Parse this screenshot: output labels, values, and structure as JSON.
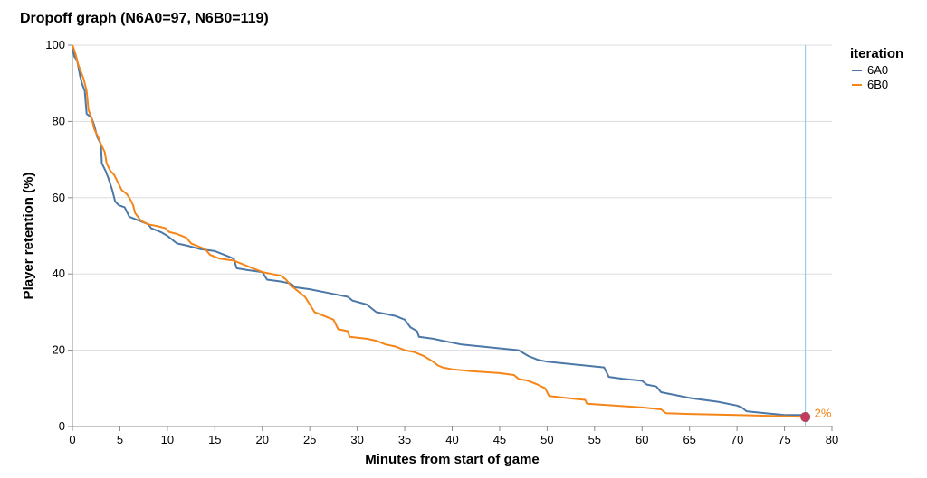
{
  "chart_data": {
    "type": "line",
    "title": "Dropoff graph (N6A0=97, N6B0=119)",
    "xlabel": "Minutes from start of game",
    "ylabel": "Player retention (%)",
    "xlim": [
      0,
      80
    ],
    "ylim": [
      0,
      100
    ],
    "xticks": [
      0,
      5,
      10,
      15,
      20,
      25,
      30,
      35,
      40,
      45,
      50,
      55,
      60,
      65,
      70,
      75,
      80
    ],
    "yticks": [
      0,
      20,
      40,
      60,
      80,
      100
    ],
    "grid": "horizontal",
    "legend": {
      "title": "iteration",
      "position": "top-right"
    },
    "series": [
      {
        "name": "6A0",
        "color": "#4c78a8",
        "points": [
          [
            0,
            100
          ],
          [
            0.2,
            97
          ],
          [
            0.5,
            96
          ],
          [
            0.8,
            92
          ],
          [
            1.0,
            90
          ],
          [
            1.3,
            88
          ],
          [
            1.5,
            82
          ],
          [
            2.0,
            81
          ],
          [
            2.3,
            79
          ],
          [
            2.6,
            76
          ],
          [
            3.0,
            74
          ],
          [
            3.1,
            69
          ],
          [
            3.5,
            67
          ],
          [
            3.8,
            65
          ],
          [
            4.2,
            62
          ],
          [
            4.5,
            59
          ],
          [
            4.9,
            58
          ],
          [
            5.5,
            57.5
          ],
          [
            6.0,
            55
          ],
          [
            7.0,
            54
          ],
          [
            8.0,
            53
          ],
          [
            8.3,
            52
          ],
          [
            9.3,
            51
          ],
          [
            10.0,
            50
          ],
          [
            11.0,
            48
          ],
          [
            12.0,
            47.5
          ],
          [
            13.5,
            46.5
          ],
          [
            15.0,
            46
          ],
          [
            16.0,
            45
          ],
          [
            17.0,
            44
          ],
          [
            17.3,
            41.5
          ],
          [
            18.5,
            41
          ],
          [
            20.0,
            40.5
          ],
          [
            20.5,
            38.5
          ],
          [
            22.0,
            38
          ],
          [
            23.0,
            37.5
          ],
          [
            23.5,
            36.5
          ],
          [
            25.0,
            36
          ],
          [
            27.0,
            35
          ],
          [
            29.0,
            34
          ],
          [
            29.5,
            33
          ],
          [
            31.0,
            32
          ],
          [
            32.0,
            30
          ],
          [
            34.0,
            29
          ],
          [
            35.0,
            28
          ],
          [
            35.6,
            26
          ],
          [
            36.3,
            25
          ],
          [
            36.5,
            23.5
          ],
          [
            38.0,
            23
          ],
          [
            39.0,
            22.5
          ],
          [
            40.0,
            22
          ],
          [
            41.0,
            21.5
          ],
          [
            43.0,
            21
          ],
          [
            45.0,
            20.5
          ],
          [
            47.0,
            20
          ],
          [
            48.0,
            18.5
          ],
          [
            49.0,
            17.5
          ],
          [
            50.0,
            17
          ],
          [
            52.0,
            16.5
          ],
          [
            54.0,
            16
          ],
          [
            56.0,
            15.5
          ],
          [
            56.5,
            13
          ],
          [
            58.0,
            12.5
          ],
          [
            60.0,
            12
          ],
          [
            60.5,
            11
          ],
          [
            61.5,
            10.5
          ],
          [
            62.0,
            9
          ],
          [
            63.0,
            8.5
          ],
          [
            65.0,
            7.5
          ],
          [
            68.0,
            6.5
          ],
          [
            70.0,
            5.5
          ],
          [
            70.5,
            5
          ],
          [
            71.0,
            4
          ],
          [
            73.0,
            3.5
          ],
          [
            75.0,
            3
          ],
          [
            77.0,
            3
          ]
        ]
      },
      {
        "name": "6B0",
        "color": "#f58518",
        "points": [
          [
            0,
            100
          ],
          [
            0.3,
            98
          ],
          [
            0.6,
            95
          ],
          [
            0.9,
            93
          ],
          [
            1.2,
            91
          ],
          [
            1.5,
            88
          ],
          [
            1.7,
            83
          ],
          [
            2.0,
            81
          ],
          [
            2.3,
            78
          ],
          [
            2.7,
            76
          ],
          [
            3.0,
            74
          ],
          [
            3.4,
            72
          ],
          [
            3.6,
            69
          ],
          [
            4.0,
            67
          ],
          [
            4.4,
            66
          ],
          [
            4.8,
            64
          ],
          [
            5.2,
            62
          ],
          [
            5.7,
            61
          ],
          [
            6.0,
            60
          ],
          [
            6.4,
            58
          ],
          [
            6.6,
            56
          ],
          [
            7.2,
            54
          ],
          [
            8.0,
            53
          ],
          [
            9.0,
            52.5
          ],
          [
            9.8,
            52
          ],
          [
            10.2,
            51
          ],
          [
            11.0,
            50.5
          ],
          [
            12.0,
            49.5
          ],
          [
            12.5,
            48
          ],
          [
            13.0,
            47.5
          ],
          [
            14.0,
            46.5
          ],
          [
            14.5,
            45
          ],
          [
            15.5,
            44
          ],
          [
            17.0,
            43.5
          ],
          [
            18.5,
            42
          ],
          [
            20.0,
            40.5
          ],
          [
            21.0,
            40
          ],
          [
            22.0,
            39.5
          ],
          [
            22.5,
            38.5
          ],
          [
            23.0,
            37
          ],
          [
            24.0,
            35
          ],
          [
            24.5,
            34
          ],
          [
            25.0,
            32
          ],
          [
            25.5,
            30
          ],
          [
            26.5,
            29
          ],
          [
            27.5,
            28
          ],
          [
            28.0,
            25.5
          ],
          [
            29.0,
            25
          ],
          [
            29.2,
            23.5
          ],
          [
            31.0,
            23
          ],
          [
            32.0,
            22.5
          ],
          [
            33.0,
            21.5
          ],
          [
            34.0,
            21
          ],
          [
            35.0,
            20
          ],
          [
            36.0,
            19.5
          ],
          [
            37.0,
            18.5
          ],
          [
            38.0,
            17
          ],
          [
            38.5,
            16
          ],
          [
            39.0,
            15.5
          ],
          [
            40.0,
            15
          ],
          [
            42.0,
            14.5
          ],
          [
            45.0,
            14
          ],
          [
            46.5,
            13.5
          ],
          [
            47.0,
            12.5
          ],
          [
            48.0,
            12
          ],
          [
            49.0,
            11
          ],
          [
            49.8,
            10
          ],
          [
            50.2,
            8
          ],
          [
            52.0,
            7.5
          ],
          [
            54.0,
            7
          ],
          [
            54.2,
            6
          ],
          [
            57.0,
            5.5
          ],
          [
            60.0,
            5
          ],
          [
            62.0,
            4.5
          ],
          [
            62.5,
            3.5
          ],
          [
            65.0,
            3.3
          ],
          [
            70.0,
            3
          ],
          [
            75.0,
            2.7
          ],
          [
            77.0,
            2.5
          ]
        ]
      }
    ],
    "rule_x": 77.2,
    "rule_color": "#80c8e0",
    "marker": {
      "x": 77.2,
      "y": 2.5,
      "color": "#c23b5d"
    },
    "annotation": {
      "text": "2%",
      "color": "#f58518"
    }
  }
}
